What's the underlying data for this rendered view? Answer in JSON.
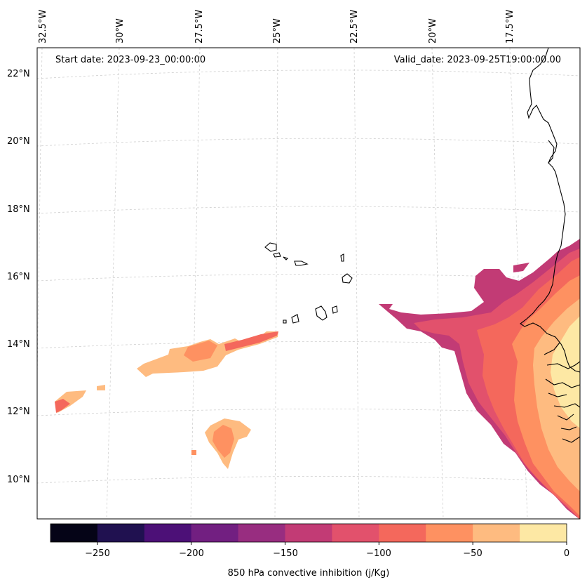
{
  "map": {
    "start_date": "Start date: 2023-09-23_00:00:00",
    "valid_date": "Valid_date: 2023-09-25T19:00:00.00",
    "longitude_labels": [
      "32.5°W",
      "30°W",
      "27.5°W",
      "25°W",
      "22.5°W",
      "20°W",
      "17.5°W"
    ],
    "latitude_labels": [
      "22°N",
      "20°N",
      "18°N",
      "16°N",
      "14°N",
      "12°N",
      "10°N"
    ]
  },
  "colorbar": {
    "label": "850 hPa convective inhibition (j/Kg)",
    "tick_labels": [
      "−250",
      "−200",
      "−150",
      "−100",
      "−50",
      "0"
    ],
    "levels": [
      -275,
      -250,
      -225,
      -200,
      -175,
      -150,
      -125,
      -100,
      -75,
      -50,
      -25,
      0
    ],
    "colors": [
      "#050417",
      "#201150",
      "#4c1077",
      "#721f81",
      "#982d80",
      "#c23b75",
      "#e2516c",
      "#f4685c",
      "#fe9161",
      "#febb80",
      "#fde8a4"
    ]
  }
}
